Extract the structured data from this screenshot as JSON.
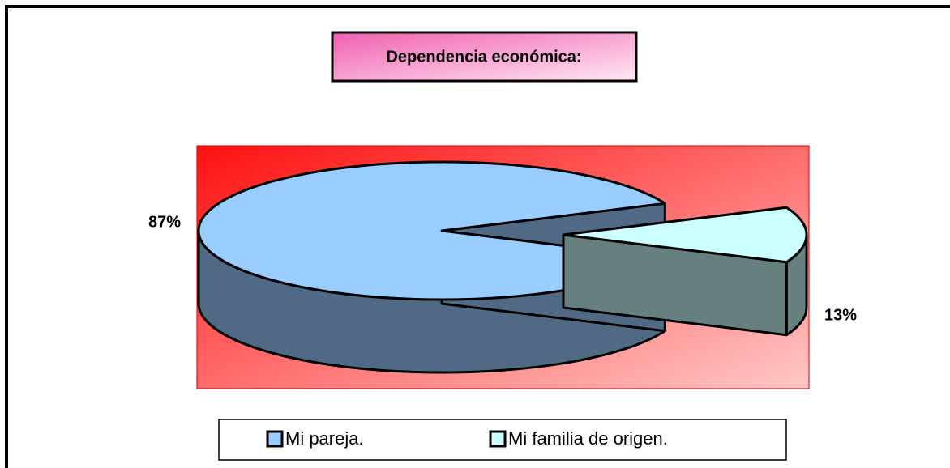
{
  "chart_data": {
    "type": "pie",
    "title": "Dependencia económica:",
    "categories": [
      "Mi pareja.",
      "Mi familia de origen."
    ],
    "values": [
      87,
      13
    ],
    "value_labels": [
      "87%",
      "13%"
    ],
    "colors": [
      "#99ccff",
      "#ccffff"
    ],
    "legend": "bottom"
  }
}
